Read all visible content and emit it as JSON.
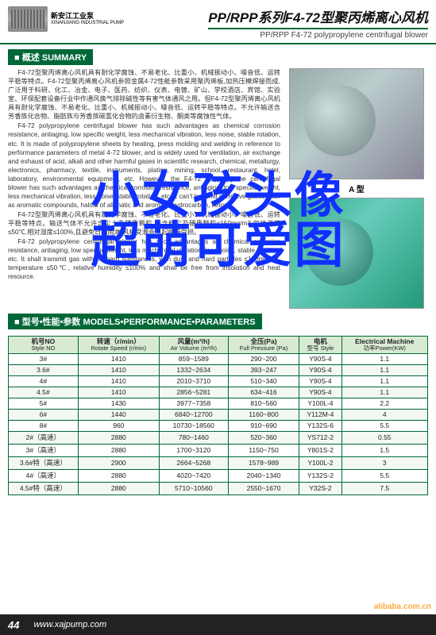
{
  "header": {
    "brand_zh": "新安江工业泵",
    "brand_en": "XINANJIANG INDUSTRIAL PUMP",
    "title_zh": "PP/RPP系列F4-72型聚丙烯离心风机",
    "title_en": "PP/RPP F4-72 polypropylene centrifugal blower"
  },
  "section_summary": "■ 概述 SUMMARY",
  "section_params": "■ 型号•性能•参数 MODELS•PERFORMANCE•PARAMETERS",
  "summary_paragraphs": [
    "F4-72型聚丙烯离心风机具有耐化学腐蚀、不易老化、比重小、机械振动小、噪音低、运转平稳等特点。F4-72型聚丙烯离心风机参照金属4-72性能参数采用聚丙烯板,加热压模焊接而成,广泛用于科研、化工、冶金、电子、医药、纺织、仪表、电镀、矿山、学校酒店、宾馆、实验室、环保配套设备行业中作通风换气排除碱性等有害气体通风之用。但F4-72型聚丙烯离心风机具有耐化学腐蚀、不易老化、比重小、机械振动小、噪音低、运转平稳等特点。不允许输送含芳香族化合物、脂肪族与芳香族碳氢化合物的卤素衍生物、酮类等腐蚀性气体。",
    "F4-72 polypropylene centrifugal blower has such advantages as chemical corrosion resistance, antiaging, low specific weight, less mechanical vibration, less noise, stable rotation, etc. It is made of polypropylene sheets by heating, press molding and welding in reference to performance parameters of metal 4-72 blower, and is widely used for ventilation, air exchange and exhaust of acid, alkali and other harmful gases in scientific research, chemical, metallurgy, electronics, pharmacy, textile, instruments, plating, mining, school, restaurant, hotel, laboratory, environmental equipment, etc. However, the F4-72 polypropylene centrifugal blower has such advantages as chemical corrosion resistance, antiaging, low specific weight, less mechanical vibration, less noise, stable rotation, etc. It can't transmit corrosive gases such as aromatic compounds, haloid of aliphatic and aromatic hydrocarbon, ketone.",
    "F4-72型聚丙烯离心风机具有耐化学腐蚀、不易老化、比重小、机械振动小、噪音低、运转平稳等特点。输送气体不允许含尘土及硬质颗粒,所含粉尘及硬质颗粒≤150mg/m3,气体温度≤50℃,相对湿度≤100%,且避免日晒雨淋,风机受潮会引起绝缘受损。",
    "F4-72 polypropylene centrifugal blower has such advantages as chemical corrosion resistance, antiaging, low specific weight, less mechanical vibration, less noise, stable rotation, etc. It shall transmit gas with no hard substances, with dust and hard particles ≤150mg/m3, temperature ≤50℃, relative humidity ≤100% and shall be free from insolation and heat resource."
  ],
  "img_caption_a": "A 型",
  "overlay_line1": "小女孩头像",
  "overlay_line2": "超萌可爱图",
  "table": {
    "headers": [
      {
        "zh": "机号NO",
        "en": "Style NO"
      },
      {
        "zh": "转速（r/min）",
        "en": "Rotate Speed (r/min)"
      },
      {
        "zh": "风量(m³/h)",
        "en": "Air Volume (m³/h)"
      },
      {
        "zh": "全压(Pa)",
        "en": "Full Pressure (Pa)"
      },
      {
        "zh": "电机",
        "en": "型号 Style"
      },
      {
        "zh": "Electrical Machine",
        "en": "功率Power(KW)"
      }
    ],
    "rows": [
      [
        "3#",
        "1410",
        "859~1589",
        "290~200",
        "Y90S-4",
        "1.1"
      ],
      [
        "3.6#",
        "1410",
        "1332~2634",
        "393~247",
        "Y90S-4",
        "1.1"
      ],
      [
        "4#",
        "1410",
        "2010~3710",
        "510~340",
        "Y90S-4",
        "1.1"
      ],
      [
        "4.5#",
        "1410",
        "2856~5281",
        "634~416",
        "Y90S-4",
        "1.1"
      ],
      [
        "5#",
        "1430",
        "3977~7358",
        "810~560",
        "Y100L-4",
        "2.2"
      ],
      [
        "6#",
        "1440",
        "6840~12700",
        "1160~800",
        "Y112M-4",
        "4"
      ],
      [
        "8#",
        "960",
        "10730~18560",
        "910~690",
        "Y132S-6",
        "5.5"
      ],
      [
        "2#（高速）",
        "2880",
        "780~1460",
        "520~360",
        "YS712-2",
        "0.55"
      ],
      [
        "3#（高速）",
        "2880",
        "1700~3120",
        "1150~750",
        "Y801S-2",
        "1.5"
      ],
      [
        "3.6#特（高速）",
        "2900",
        "2664~5268",
        "1578~989",
        "Y100L-2",
        "3"
      ],
      [
        "4#（高速）",
        "2880",
        "4020~7420",
        "2040~1340",
        "Y132S-2",
        "5.5"
      ],
      [
        "4.5#特（高速）",
        "2880",
        "5710~10560",
        "2550~1670",
        "Y32S-2",
        "7.5"
      ]
    ]
  },
  "footer": {
    "page": "44",
    "url": "www.xajpump.com"
  },
  "watermark": "alibaba.com.cn"
}
